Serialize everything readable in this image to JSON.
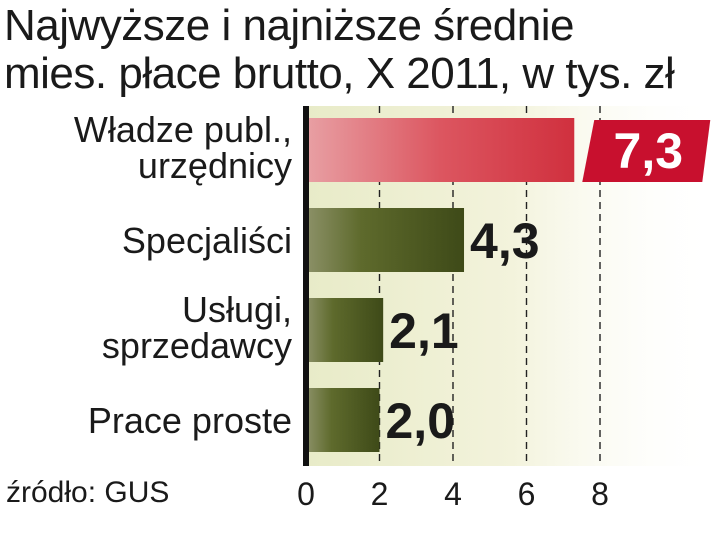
{
  "chart_data": {
    "type": "bar",
    "orientation": "horizontal",
    "title_lines": [
      "Najwyższe i najniższe średnie",
      "mies. płace brutto, X 2011, w tys. zł"
    ],
    "categories": [
      [
        "Władze publ.,",
        "urzędnicy"
      ],
      [
        "Specjaliści"
      ],
      [
        "Usługi,",
        "sprzedawcy"
      ],
      [
        "Prace proste"
      ]
    ],
    "values": [
      7.3,
      4.3,
      2.1,
      2.0
    ],
    "value_labels": [
      "7,3",
      "4,3",
      "2,1",
      "2,0"
    ],
    "xlim": [
      0,
      8
    ],
    "xticks": [
      0,
      2,
      4,
      6,
      8
    ],
    "xtick_labels": [
      "0",
      "2",
      "4",
      "6",
      "8"
    ],
    "grid": "vertical dashed",
    "colors": {
      "highlight_bar": "#d9424f",
      "bar": "#5c6a2a",
      "highlight_label_bg": "#c8102e",
      "background_band": "#f0f0d8"
    }
  },
  "source": "źródło: GUS"
}
